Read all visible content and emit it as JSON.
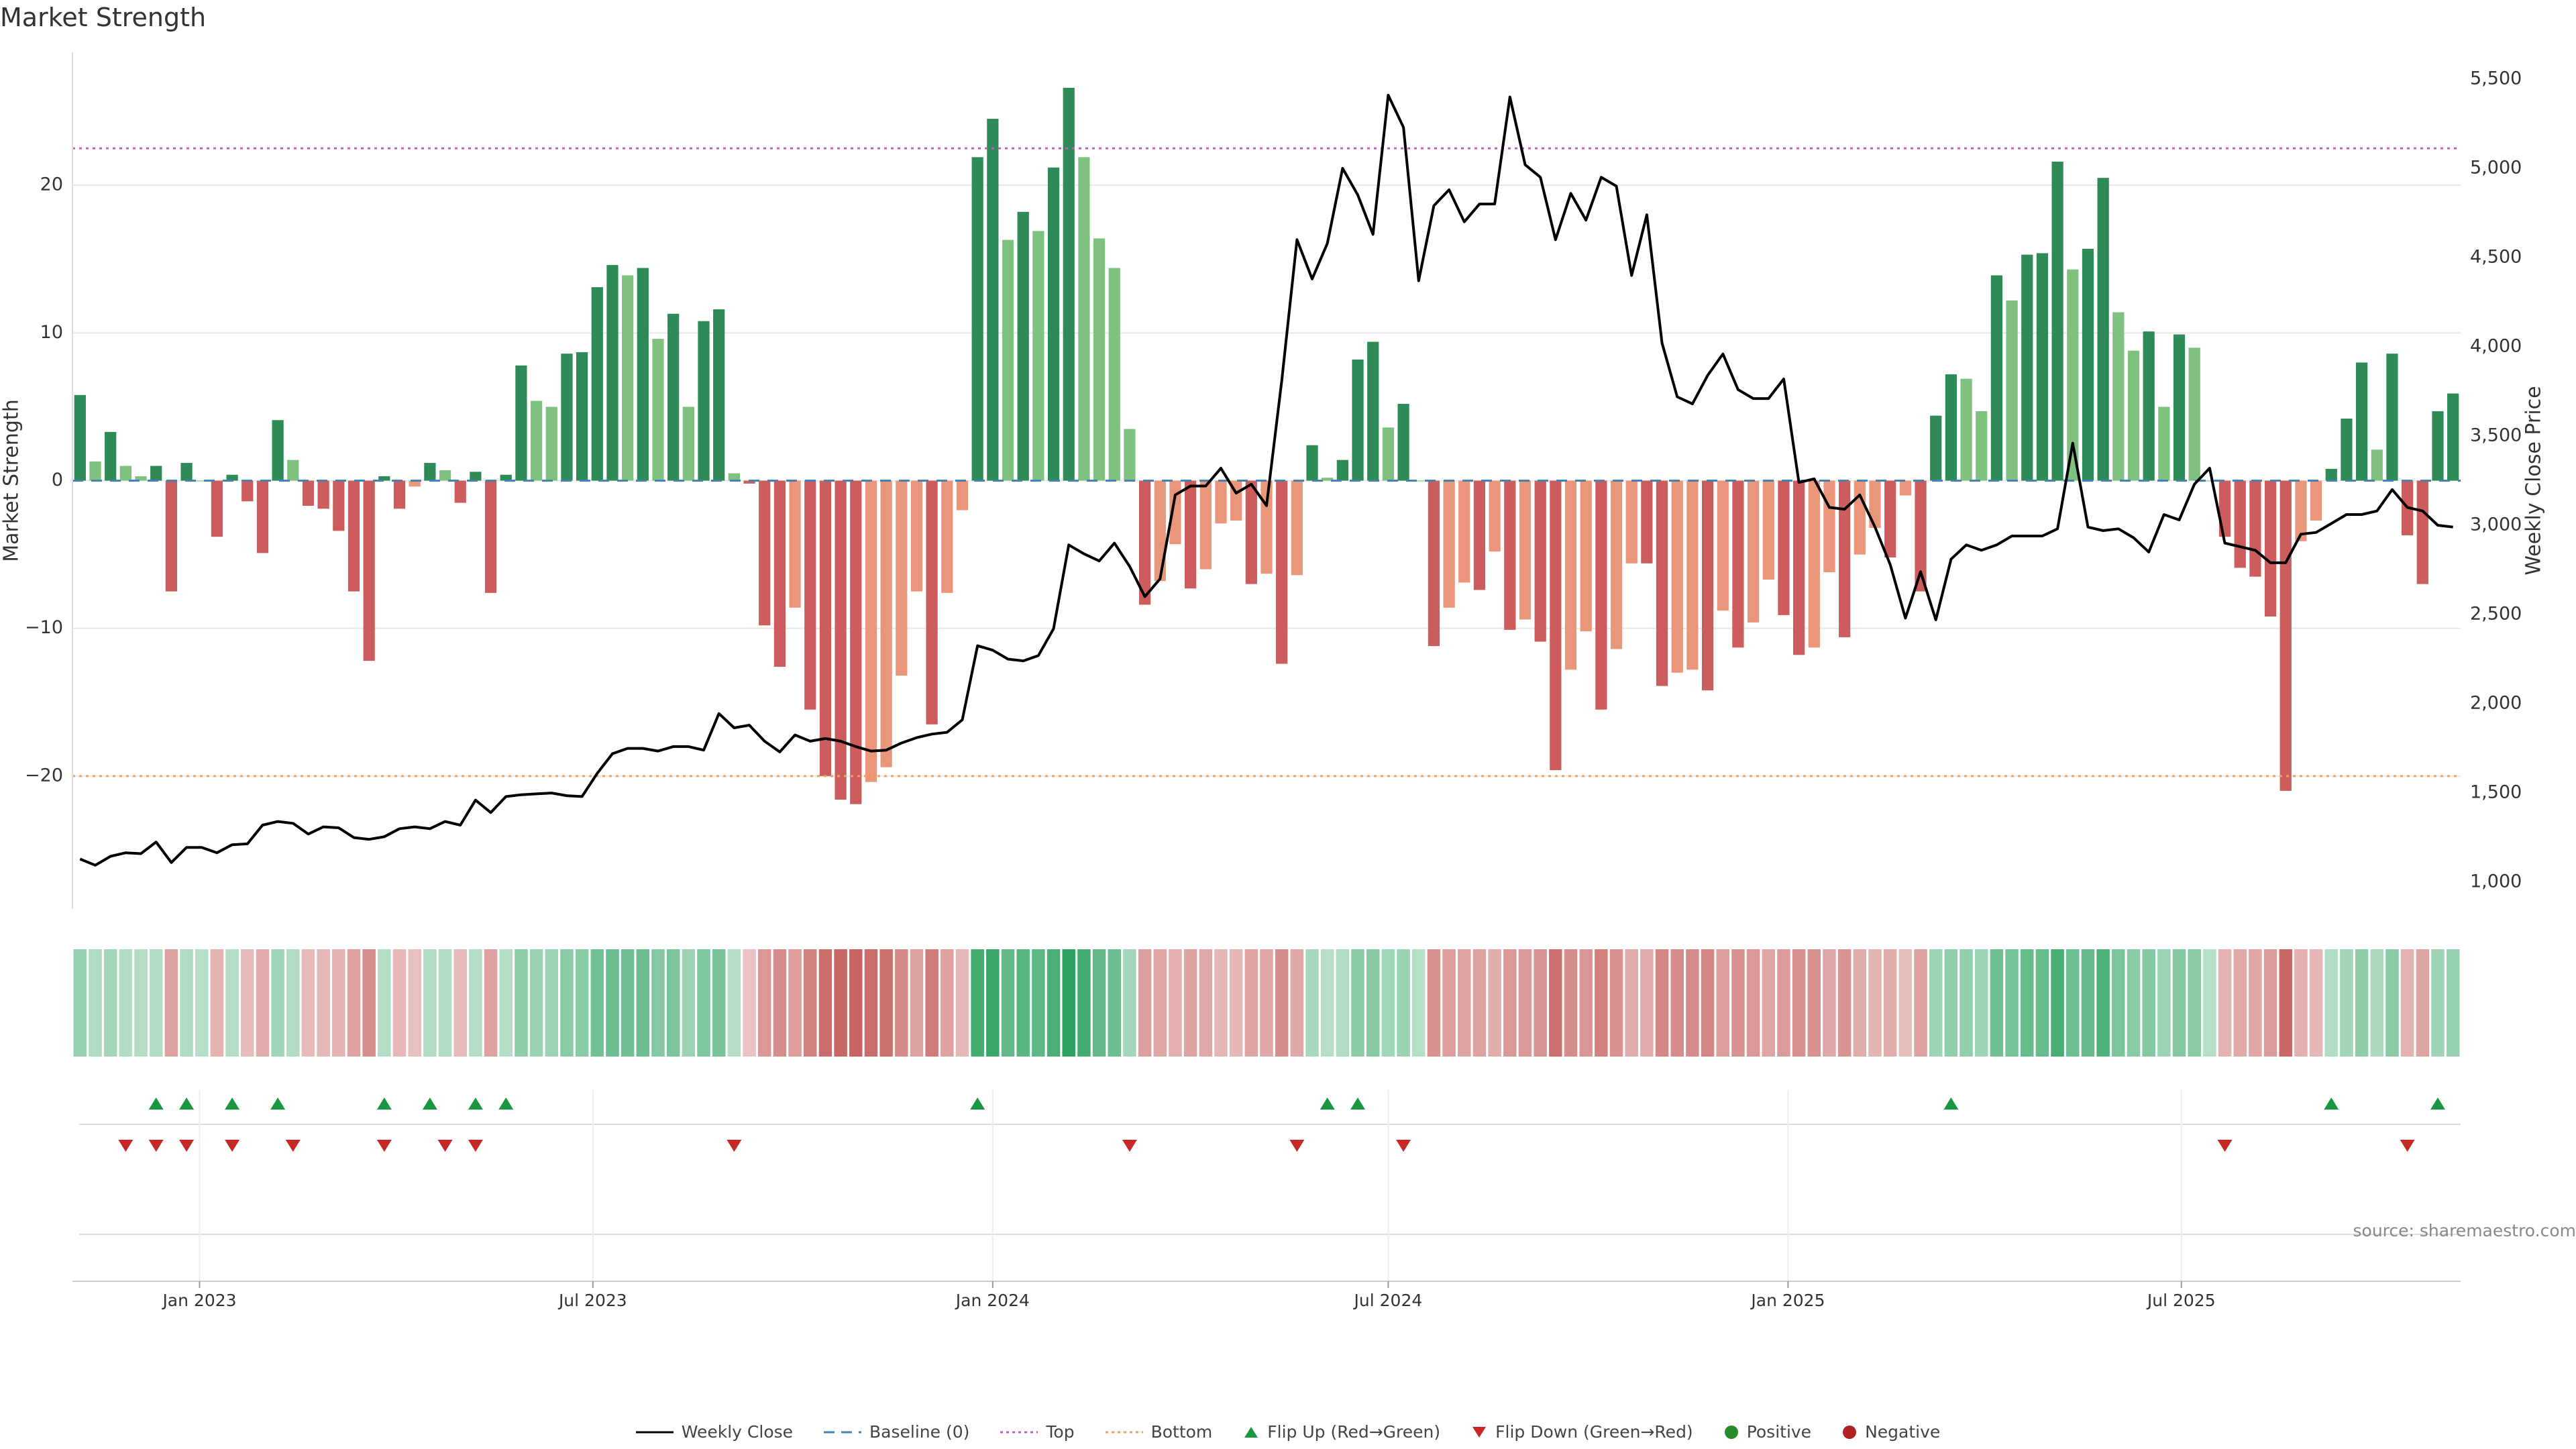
{
  "title": "Market Strength",
  "source": "source: sharemaestro.com",
  "legend": {
    "weekly_close": "Weekly Close",
    "baseline": "Baseline (0)",
    "top": "Top",
    "bottom": "Bottom",
    "flip_up": "Flip Up (Red→Green)",
    "flip_down": "Flip Down (Green→Red)",
    "positive": "Positive",
    "negative": "Negative"
  },
  "colors": {
    "strong_green": "#2e8b57",
    "light_green": "#7fc17f",
    "strong_red": "#cd5c5c",
    "light_red": "#e9967a",
    "price_line": "#000000",
    "baseline": "#4682b4",
    "top_line": "#c060c0",
    "bottom_line": "#f0a060",
    "flip_up": "#1a9641",
    "flip_down": "#c62828",
    "positive_dot": "#2a8a2a",
    "negative_dot": "#b22222"
  },
  "chart_data": {
    "type": "bar",
    "start_date": "2022-11-07",
    "frequency": "weekly",
    "x_axis": {
      "tick_labels": [
        "Jan 2023",
        "Jul 2023",
        "Jan 2024",
        "Jul 2024",
        "Jan 2025",
        "Jul 2025"
      ],
      "tick_dates": [
        "2023-01-01",
        "2023-07-01",
        "2024-01-01",
        "2024-07-01",
        "2025-01-01",
        "2025-07-01"
      ]
    },
    "y_left": {
      "label": "Market Strength",
      "ylim": [
        -29,
        29
      ],
      "ticks": [
        -20,
        -10,
        0,
        10,
        20
      ]
    },
    "y_right": {
      "label": "Weekly Close Price",
      "ylim": [
        850,
        5650
      ],
      "ticks": [
        1000,
        1500,
        2000,
        2500,
        3000,
        3500,
        4000,
        4500,
        5000,
        5500
      ]
    },
    "top_threshold": 22.5,
    "bottom_threshold": -20,
    "grid": true,
    "legend_position": "bottom-center",
    "strength": [
      5.8,
      1.3,
      3.3,
      1.0,
      0.3,
      1.0,
      -7.5,
      1.2,
      0.0,
      -3.8,
      0.4,
      -1.4,
      -4.9,
      4.1,
      1.4,
      -1.7,
      -1.9,
      -3.4,
      -7.5,
      -12.2,
      0.3,
      -1.9,
      -0.4,
      1.2,
      0.7,
      -1.5,
      0.6,
      -7.6,
      0.4,
      7.8,
      5.4,
      5.0,
      8.6,
      8.7,
      13.1,
      14.6,
      13.9,
      14.4,
      9.6,
      11.3,
      5.0,
      10.8,
      11.6,
      0.5,
      -0.2,
      -9.8,
      -12.6,
      -8.6,
      -15.5,
      -20.0,
      -21.6,
      -21.9,
      -20.4,
      -19.4,
      -13.2,
      -7.5,
      -16.5,
      -7.6,
      -2.0,
      21.9,
      24.5,
      16.3,
      18.2,
      16.9,
      21.2,
      26.6,
      21.9,
      16.4,
      14.4,
      3.5,
      -8.4,
      -6.8,
      -4.3,
      -7.3,
      -6.0,
      -2.9,
      -2.7,
      -7.0,
      -6.3,
      -12.4,
      -6.4,
      2.4,
      0.2,
      1.4,
      8.2,
      9.4,
      3.6,
      5.2,
      0.0,
      -11.2,
      -8.6,
      -6.9,
      -7.4,
      -4.8,
      -10.1,
      -9.4,
      -10.9,
      -19.6,
      -12.8,
      -10.2,
      -15.5,
      -11.4,
      -5.6,
      -5.6,
      -13.9,
      -13.0,
      -12.8,
      -14.2,
      -8.8,
      -11.3,
      -9.6,
      -6.7,
      -9.1,
      -11.8,
      -11.3,
      -6.2,
      -10.6,
      -5.0,
      -3.2,
      -5.2,
      -1.0,
      -7.5,
      4.4,
      7.2,
      6.9,
      4.7,
      13.9,
      12.2,
      15.3,
      15.4,
      21.6,
      14.3,
      15.7,
      20.5,
      11.4,
      8.8,
      10.1,
      5.0,
      9.9,
      9.0,
      0.0,
      -3.8,
      -5.9,
      -6.5,
      -9.2,
      -21.0,
      -4.1,
      -2.7,
      0.8,
      4.2,
      8.0,
      2.1,
      8.6,
      -3.7,
      -7.0,
      4.7,
      5.9
    ],
    "weekly_close": [
      1130,
      1095,
      1145,
      1165,
      1160,
      1225,
      1110,
      1195,
      1195,
      1165,
      1210,
      1215,
      1320,
      1340,
      1330,
      1270,
      1310,
      1305,
      1250,
      1240,
      1255,
      1300,
      1310,
      1300,
      1340,
      1320,
      1460,
      1390,
      1480,
      1490,
      1495,
      1500,
      1485,
      1480,
      1610,
      1720,
      1750,
      1750,
      1735,
      1760,
      1760,
      1740,
      1945,
      1865,
      1880,
      1790,
      1730,
      1825,
      1790,
      1805,
      1790,
      1760,
      1735,
      1740,
      1780,
      1810,
      1830,
      1840,
      1910,
      2325,
      2300,
      2250,
      2240,
      2270,
      2420,
      2890,
      2840,
      2800,
      2900,
      2770,
      2600,
      2700,
      3170,
      3220,
      3220,
      3320,
      3180,
      3230,
      3110,
      3810,
      4600,
      4380,
      4580,
      5000,
      4850,
      4630,
      5410,
      5230,
      4370,
      4790,
      4880,
      4700,
      4800,
      4800,
      5400,
      5020,
      4950,
      4600,
      4860,
      4710,
      4950,
      4900,
      4400,
      4740,
      4020,
      3720,
      3680,
      3840,
      3960,
      3760,
      3710,
      3710,
      3820,
      3240,
      3260,
      3100,
      3090,
      3170,
      2990,
      2780,
      2480,
      2740,
      2470,
      2810,
      2890,
      2860,
      2890,
      2940,
      2940,
      2940,
      2980,
      3460,
      2990,
      2970,
      2980,
      2930,
      2850,
      3060,
      3030,
      3230,
      3320,
      2900,
      2880,
      2860,
      2790,
      2790,
      2950,
      2960,
      3010,
      3060,
      3060,
      3080,
      3200,
      3100,
      3080,
      3000,
      2990
    ],
    "flip_up_dates": [
      "2022-12-12",
      "2022-12-26",
      "2023-01-16",
      "2023-02-06",
      "2023-03-27",
      "2023-04-17",
      "2023-05-08",
      "2023-05-22",
      "2023-12-25",
      "2024-06-03",
      "2024-06-17",
      "2025-03-17",
      "2025-09-08",
      "2025-10-27"
    ],
    "flip_down_dates": [
      "2022-11-28",
      "2022-12-12",
      "2022-12-26",
      "2023-01-16",
      "2023-02-13",
      "2023-03-27",
      "2023-04-24",
      "2023-05-08",
      "2023-09-04",
      "2024-03-04",
      "2024-05-20",
      "2024-07-08",
      "2025-07-21",
      "2025-10-13"
    ]
  }
}
